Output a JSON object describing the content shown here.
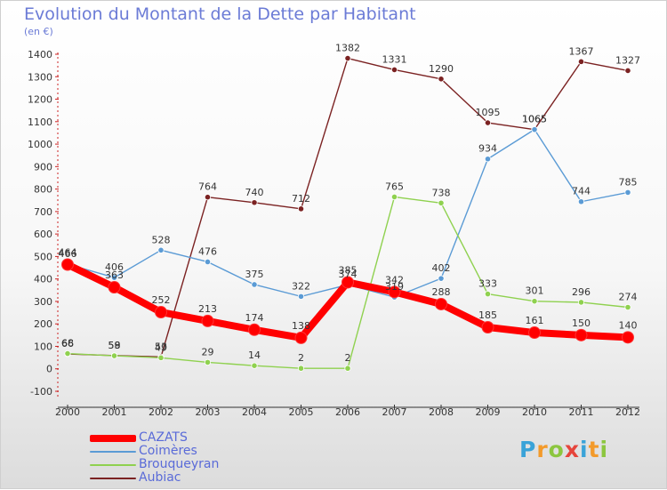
{
  "header": {
    "title": "Evolution du Montant de la Dette par Habitant",
    "subtitle": "(en €)"
  },
  "brand": {
    "text": "Proxiti",
    "colors": [
      "#3aa3d8",
      "#f39a2a",
      "#8cc63f",
      "#e6453c",
      "#3aa3d8",
      "#f39a2a",
      "#8cc63f"
    ]
  },
  "chart_data": {
    "type": "line",
    "title": "Evolution du Montant de la Dette par Habitant",
    "subtitle": "(en €)",
    "x": [
      "2000",
      "2001",
      "2002",
      "2003",
      "2004",
      "2005",
      "2006",
      "2007",
      "2008",
      "2009",
      "2010",
      "2011",
      "2012"
    ],
    "ylim": [
      -100,
      1400
    ],
    "yticks": [
      -100,
      0,
      100,
      200,
      300,
      400,
      500,
      600,
      700,
      800,
      900,
      1000,
      1100,
      1200,
      1300,
      1400
    ],
    "grid": false,
    "legend": "bottom-left",
    "series": [
      {
        "name": "CAZATS",
        "color": "#ff0000",
        "values": [
          464,
          363,
          252,
          213,
          174,
          138,
          385,
          342,
          288,
          185,
          161,
          150,
          140
        ]
      },
      {
        "name": "Coimères",
        "color": "#5b9bd5",
        "values": [
          466,
          406,
          528,
          476,
          375,
          322,
          374,
          319,
          402,
          934,
          1065,
          744,
          785
        ]
      },
      {
        "name": "Brouqueyran",
        "color": "#8fd14f",
        "values": [
          68,
          58,
          49,
          29,
          14,
          2,
          2,
          765,
          738,
          333,
          301,
          296,
          274
        ]
      },
      {
        "name": "Aubiac",
        "color": "#7b2222",
        "values": [
          66,
          59,
          53,
          764,
          740,
          712,
          1382,
          1331,
          1290,
          1095,
          1065,
          1367,
          1327
        ]
      }
    ]
  }
}
